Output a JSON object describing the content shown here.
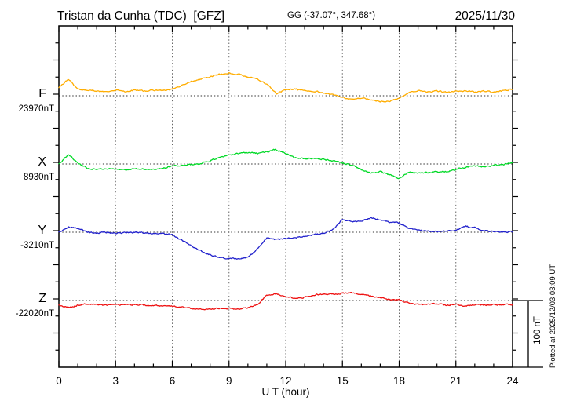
{
  "header": {
    "title": "Tristan da Cunha (TDC)  [GFZ]",
    "coordinates": "GG (-37.07°, 347.68°)",
    "date": "2025/11/30"
  },
  "axis": {
    "xlabel": "U T (hour)",
    "x_min": 0,
    "x_max": 24,
    "major_tick_hours": [
      0,
      3,
      6,
      9,
      12,
      15,
      18,
      21,
      24
    ],
    "minor_tick_step_hours": 1,
    "grid_vertical_hours": [
      3,
      6,
      9,
      12,
      15,
      18,
      21
    ]
  },
  "scale_bar": {
    "label": "100 nT",
    "value_nT": 100
  },
  "footer": {
    "plotted_at": "Plotted at 2025/12/03 03:09 UT"
  },
  "chart_data": {
    "type": "line",
    "title": "Magnetogram Tristan da Cunha (TDC) [GFZ] 2025/11/30",
    "station": "Tristan da Cunha",
    "station_code": "TDC",
    "institute": "GFZ",
    "date": "2025/11/30",
    "x_label": "U T (hour)",
    "x_range": [
      0,
      24
    ],
    "grid": "dotted vertical lines every 3 hours; dotted horizontal baseline per channel",
    "y_units": "nT deviation from channel baseline",
    "amplitude_scale": "100 nT scale bar shown at lower right",
    "x": [
      0,
      0.5,
      1,
      1.5,
      2,
      2.5,
      3,
      3.5,
      4,
      4.5,
      5,
      5.5,
      6,
      6.5,
      7,
      7.5,
      8,
      8.5,
      9,
      9.5,
      10,
      10.5,
      11,
      11.5,
      12,
      12.5,
      13,
      13.5,
      14,
      14.5,
      15,
      15.5,
      16,
      16.5,
      17,
      17.5,
      18,
      18.5,
      19,
      19.5,
      20,
      20.5,
      21,
      21.5,
      22,
      22.5,
      23,
      23.5,
      24
    ],
    "series": [
      {
        "name": "F",
        "color": "#FFAD00",
        "baseline_label": "23970nT",
        "baseline_nT": 23970,
        "values_dev_nT": [
          12,
          25,
          9,
          8,
          7,
          6,
          8,
          6,
          8,
          7,
          8,
          8,
          10,
          16,
          21,
          25,
          28,
          32,
          34,
          32,
          28,
          25,
          18,
          3,
          9,
          10,
          8,
          7,
          5,
          1,
          -3,
          -5,
          -4,
          -6,
          -8,
          -9,
          -4,
          5,
          8,
          6,
          7,
          5,
          6,
          7,
          6,
          7,
          6,
          7,
          10
        ]
      },
      {
        "name": "X",
        "color": "#00D926",
        "baseline_label": "8930nT",
        "baseline_nT": 8930,
        "values_dev_nT": [
          0,
          14,
          2,
          -6,
          -8,
          -7,
          -8,
          -9,
          -7,
          -8,
          -8,
          -6,
          -3,
          -2,
          -1,
          0,
          5,
          10,
          13,
          16,
          17,
          16,
          18,
          22,
          16,
          9,
          8,
          9,
          7,
          4,
          2,
          -2,
          -8,
          -14,
          -12,
          -16,
          -22,
          -12,
          -14,
          -13,
          -12,
          -11,
          -8,
          -5,
          -3,
          -4,
          -2,
          -1,
          2
        ]
      },
      {
        "name": "Y",
        "color": "#2222CC",
        "baseline_label": "-3210nT",
        "baseline_nT": -3210,
        "values_dev_nT": [
          0,
          8,
          6,
          0,
          -1,
          0,
          -1,
          -1,
          0,
          -1,
          -2,
          -2,
          -4,
          -12,
          -20,
          -28,
          -34,
          -38,
          -39,
          -40,
          -38,
          -25,
          -9,
          -11,
          -9,
          -8,
          -6,
          -4,
          -2,
          4,
          19,
          16,
          17,
          22,
          18,
          15,
          14,
          6,
          3,
          2,
          1,
          2,
          3,
          9,
          7,
          2,
          1,
          0,
          1
        ]
      },
      {
        "name": "Z",
        "color": "#EE1111",
        "baseline_label": "-22020nT",
        "baseline_nT": -22020,
        "values_dev_nT": [
          -6,
          -11,
          -7,
          -5,
          -6,
          -7,
          -6,
          -7,
          -6,
          -7,
          -8,
          -8,
          -9,
          -10,
          -12,
          -13,
          -13,
          -12,
          -12,
          -13,
          -11,
          -7,
          8,
          10,
          6,
          3,
          5,
          8,
          10,
          9,
          11,
          12,
          9,
          7,
          4,
          2,
          1,
          -4,
          -6,
          -6,
          -5,
          -7,
          -6,
          -8,
          -6,
          -7,
          -6,
          -6,
          -6
        ]
      }
    ]
  }
}
